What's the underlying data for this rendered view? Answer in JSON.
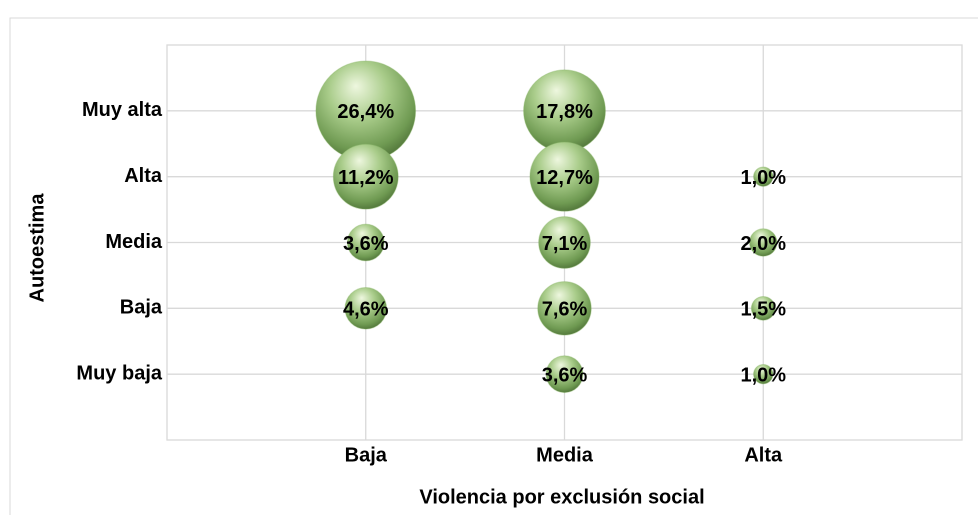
{
  "chart_data": {
    "type": "bubble",
    "x_label": "Violencia por exclusión social",
    "y_label": "Autoestima",
    "x_categories": [
      "Baja",
      "Media",
      "Alta"
    ],
    "y_categories": [
      "Muy baja",
      "Baja",
      "Media",
      "Alta",
      "Muy alta"
    ],
    "grid": true,
    "color": "#8fb96e",
    "bubbles": [
      {
        "x": "Baja",
        "y": "Muy alta",
        "value": 26.4,
        "value_label": "26,4%"
      },
      {
        "x": "Baja",
        "y": "Alta",
        "value": 11.2,
        "value_label": "11,2%"
      },
      {
        "x": "Baja",
        "y": "Media",
        "value": 3.6,
        "value_label": "3,6%"
      },
      {
        "x": "Baja",
        "y": "Baja",
        "value": 4.6,
        "value_label": "4,6%"
      },
      {
        "x": "Media",
        "y": "Muy alta",
        "value": 17.8,
        "value_label": "17,8%"
      },
      {
        "x": "Media",
        "y": "Alta",
        "value": 12.7,
        "value_label": "12,7%"
      },
      {
        "x": "Media",
        "y": "Media",
        "value": 7.1,
        "value_label": "7,1%"
      },
      {
        "x": "Media",
        "y": "Baja",
        "value": 7.6,
        "value_label": "7,6%"
      },
      {
        "x": "Media",
        "y": "Muy baja",
        "value": 3.6,
        "value_label": "3,6%"
      },
      {
        "x": "Alta",
        "y": "Alta",
        "value": 1.0,
        "value_label": "1,0%"
      },
      {
        "x": "Alta",
        "y": "Media",
        "value": 2.0,
        "value_label": "2,0%"
      },
      {
        "x": "Alta",
        "y": "Baja",
        "value": 1.5,
        "value_label": "1,5%"
      },
      {
        "x": "Alta",
        "y": "Muy baja",
        "value": 1.0,
        "value_label": "1,0%"
      }
    ]
  }
}
